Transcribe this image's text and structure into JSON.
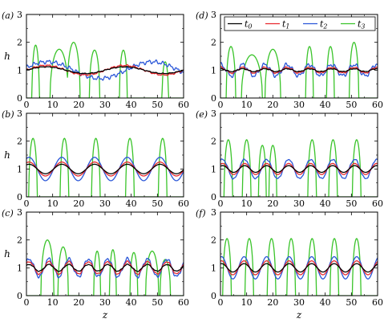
{
  "figure": {
    "legend_panel": "d",
    "legend_placement": "top-right"
  },
  "chart_data": [
    {
      "type": "line",
      "panel": "a",
      "label": "(a)",
      "xlabel": "",
      "ylabel": "h",
      "xlim": [
        0,
        60
      ],
      "ylim": [
        0,
        3
      ],
      "xticks": [
        0,
        10,
        20,
        30,
        40,
        50,
        60
      ],
      "yticks": [
        0,
        1,
        2,
        3
      ],
      "grid": false,
      "series": [
        {
          "name": "t0",
          "color": "#000000",
          "kind": "wave",
          "amp": 0.12,
          "period": 30,
          "phase": 0.25,
          "base": 1.0,
          "noise": 0.01
        },
        {
          "name": "t1",
          "color": "#e8282e",
          "kind": "wave",
          "amp": 0.17,
          "period": 30,
          "phase": 0.25,
          "base": 1.0,
          "noise": 0.02
        },
        {
          "name": "t2",
          "color": "#2a56d8",
          "kind": "wave",
          "amp": 0.3,
          "period": 40,
          "phase": 0.2,
          "base": 1.0,
          "noise": 0.05
        },
        {
          "name": "t3",
          "color": "#3ac42a",
          "kind": "bumps",
          "peaks": [
            {
              "x": 3.5,
              "h": 1.9,
              "w": 1.4
            },
            {
              "x": 12.5,
              "h": 1.75,
              "w": 3.5
            },
            {
              "x": 18,
              "h": 2.0,
              "w": 2.5
            },
            {
              "x": 26,
              "h": 1.72,
              "w": 2.0
            },
            {
              "x": 37,
              "h": 1.72,
              "w": 1.5
            },
            {
              "x": 53,
              "h": 1.3,
              "w": 1.2
            }
          ]
        }
      ]
    },
    {
      "type": "line",
      "panel": "b",
      "label": "(b)",
      "xlabel": "",
      "ylabel": "h",
      "xlim": [
        0,
        60
      ],
      "ylim": [
        0,
        3
      ],
      "xticks": [
        0,
        10,
        20,
        30,
        40,
        50,
        60
      ],
      "yticks": [
        0,
        1,
        2,
        3
      ],
      "grid": false,
      "series": [
        {
          "name": "t0",
          "color": "#000000",
          "kind": "wave",
          "amp": 0.17,
          "period": 12.5,
          "phase": 0.08,
          "base": 1.0,
          "noise": 0.0
        },
        {
          "name": "t1",
          "color": "#e8282e",
          "kind": "wave",
          "amp": 0.25,
          "period": 12.5,
          "phase": 0.08,
          "base": 1.0,
          "noise": 0.0
        },
        {
          "name": "t2",
          "color": "#2a56d8",
          "kind": "wave",
          "amp": 0.42,
          "period": 12.5,
          "phase": 0.08,
          "base": 1.0,
          "noise": 0.0
        },
        {
          "name": "t3",
          "color": "#3ac42a",
          "kind": "bumps",
          "peaks": [
            {
              "x": 2.5,
              "h": 2.1,
              "w": 1.6
            },
            {
              "x": 14.5,
              "h": 2.1,
              "w": 1.6
            },
            {
              "x": 26.5,
              "h": 2.1,
              "w": 1.6
            },
            {
              "x": 39.5,
              "h": 2.1,
              "w": 1.6
            },
            {
              "x": 52,
              "h": 2.1,
              "w": 1.6
            }
          ]
        }
      ]
    },
    {
      "type": "line",
      "panel": "c",
      "label": "(c)",
      "xlabel": "z",
      "ylabel": "h",
      "xlim": [
        0,
        60
      ],
      "ylim": [
        0,
        3
      ],
      "xticks": [
        0,
        10,
        20,
        30,
        40,
        50,
        60
      ],
      "yticks": [
        0,
        1,
        2,
        3
      ],
      "grid": false,
      "series": [
        {
          "name": "t0",
          "color": "#000000",
          "kind": "wave",
          "amp": 0.12,
          "period": 7.5,
          "phase": 0.15,
          "base": 1.0,
          "noise": 0.01
        },
        {
          "name": "t1",
          "color": "#e8282e",
          "kind": "wave",
          "amp": 0.22,
          "period": 7.5,
          "phase": 0.15,
          "base": 1.0,
          "noise": 0.02
        },
        {
          "name": "t2",
          "color": "#2a56d8",
          "kind": "wave",
          "amp": 0.32,
          "period": 7.5,
          "phase": 0.15,
          "base": 1.0,
          "noise": 0.04
        },
        {
          "name": "t3",
          "color": "#3ac42a",
          "kind": "bumps",
          "peaks": [
            {
              "x": 8,
              "h": 2.0,
              "w": 2.5
            },
            {
              "x": 14,
              "h": 1.75,
              "w": 2.0
            },
            {
              "x": 27,
              "h": 1.6,
              "w": 1.3
            },
            {
              "x": 33,
              "h": 1.65,
              "w": 1.3
            },
            {
              "x": 41,
              "h": 1.55,
              "w": 1.5
            },
            {
              "x": 48,
              "h": 1.6,
              "w": 2.5
            },
            {
              "x": 53,
              "h": 1.3,
              "w": 2.0
            }
          ]
        }
      ]
    },
    {
      "type": "line",
      "panel": "d",
      "label": "(d)",
      "xlabel": "",
      "ylabel": "",
      "xlim": [
        0,
        60
      ],
      "ylim": [
        0,
        3
      ],
      "xticks": [
        0,
        10,
        20,
        30,
        40,
        50,
        60
      ],
      "yticks": [
        0,
        1,
        2,
        3
      ],
      "grid": false,
      "legend": {
        "entries": [
          "t0",
          "t1",
          "t2",
          "t3"
        ],
        "placement": "top-right"
      },
      "series": [
        {
          "name": "t0",
          "color": "#000000",
          "kind": "wave",
          "amp": 0.05,
          "period": 8.5,
          "phase": 0.0,
          "base": 1.0,
          "noise": 0.01
        },
        {
          "name": "t1",
          "color": "#e8282e",
          "kind": "wave",
          "amp": 0.1,
          "period": 8.5,
          "phase": 0.0,
          "base": 1.0,
          "noise": 0.02
        },
        {
          "name": "t2",
          "color": "#2a56d8",
          "kind": "wave",
          "amp": 0.2,
          "period": 8.5,
          "phase": 0.0,
          "base": 1.0,
          "noise": 0.05
        },
        {
          "name": "t3",
          "color": "#3ac42a",
          "kind": "bumps",
          "peaks": [
            {
              "x": 4,
              "h": 1.85,
              "w": 1.8
            },
            {
              "x": 12,
              "h": 1.55,
              "w": 4.0
            },
            {
              "x": 20,
              "h": 1.75,
              "w": 3.0
            },
            {
              "x": 34,
              "h": 1.85,
              "w": 1.5
            },
            {
              "x": 42,
              "h": 1.85,
              "w": 1.5
            },
            {
              "x": 51,
              "h": 2.0,
              "w": 1.8
            }
          ]
        }
      ]
    },
    {
      "type": "line",
      "panel": "e",
      "label": "(e)",
      "xlabel": "",
      "ylabel": "",
      "xlim": [
        0,
        60
      ],
      "ylim": [
        0,
        3
      ],
      "xticks": [
        0,
        10,
        20,
        30,
        40,
        50,
        60
      ],
      "yticks": [
        0,
        1,
        2,
        3
      ],
      "grid": false,
      "series": [
        {
          "name": "t0",
          "color": "#000000",
          "kind": "wave",
          "amp": 0.12,
          "period": 8.4,
          "phase": 0.1,
          "base": 1.0,
          "noise": 0.0
        },
        {
          "name": "t1",
          "color": "#e8282e",
          "kind": "wave",
          "amp": 0.2,
          "period": 8.4,
          "phase": 0.1,
          "base": 1.0,
          "noise": 0.0
        },
        {
          "name": "t2",
          "color": "#2a56d8",
          "kind": "wave",
          "amp": 0.35,
          "period": 8.4,
          "phase": 0.1,
          "base": 1.0,
          "noise": 0.02
        },
        {
          "name": "t3",
          "color": "#3ac42a",
          "kind": "bumps",
          "peaks": [
            {
              "x": 3,
              "h": 2.05,
              "w": 1.6
            },
            {
              "x": 10,
              "h": 2.05,
              "w": 1.6
            },
            {
              "x": 16,
              "h": 1.85,
              "w": 1.5
            },
            {
              "x": 20,
              "h": 1.85,
              "w": 1.5
            },
            {
              "x": 35,
              "h": 2.05,
              "w": 1.6
            },
            {
              "x": 43,
              "h": 2.05,
              "w": 1.6
            },
            {
              "x": 52,
              "h": 2.05,
              "w": 1.6
            }
          ]
        }
      ]
    },
    {
      "type": "line",
      "panel": "f",
      "label": "(f)",
      "xlabel": "z",
      "ylabel": "",
      "xlim": [
        0,
        60
      ],
      "ylim": [
        0,
        3
      ],
      "xticks": [
        0,
        10,
        20,
        30,
        40,
        50,
        60
      ],
      "yticks": [
        0,
        1,
        2,
        3
      ],
      "grid": false,
      "series": [
        {
          "name": "t0",
          "color": "#000000",
          "kind": "wave",
          "amp": 0.15,
          "period": 8.6,
          "phase": 0.05,
          "base": 1.0,
          "noise": 0.0
        },
        {
          "name": "t1",
          "color": "#e8282e",
          "kind": "wave",
          "amp": 0.25,
          "period": 8.6,
          "phase": 0.05,
          "base": 1.0,
          "noise": 0.0
        },
        {
          "name": "t2",
          "color": "#2a56d8",
          "kind": "wave",
          "amp": 0.4,
          "period": 8.6,
          "phase": 0.05,
          "base": 1.0,
          "noise": 0.0
        },
        {
          "name": "t3",
          "color": "#3ac42a",
          "kind": "bumps",
          "peaks": [
            {
              "x": 2.5,
              "h": 2.05,
              "w": 1.6
            },
            {
              "x": 11,
              "h": 2.05,
              "w": 1.6
            },
            {
              "x": 19.5,
              "h": 2.05,
              "w": 1.6
            },
            {
              "x": 27,
              "h": 2.05,
              "w": 1.6
            },
            {
              "x": 35,
              "h": 2.05,
              "w": 1.6
            },
            {
              "x": 43.5,
              "h": 2.05,
              "w": 1.6
            },
            {
              "x": 52,
              "h": 2.05,
              "w": 1.6
            }
          ]
        }
      ]
    }
  ]
}
